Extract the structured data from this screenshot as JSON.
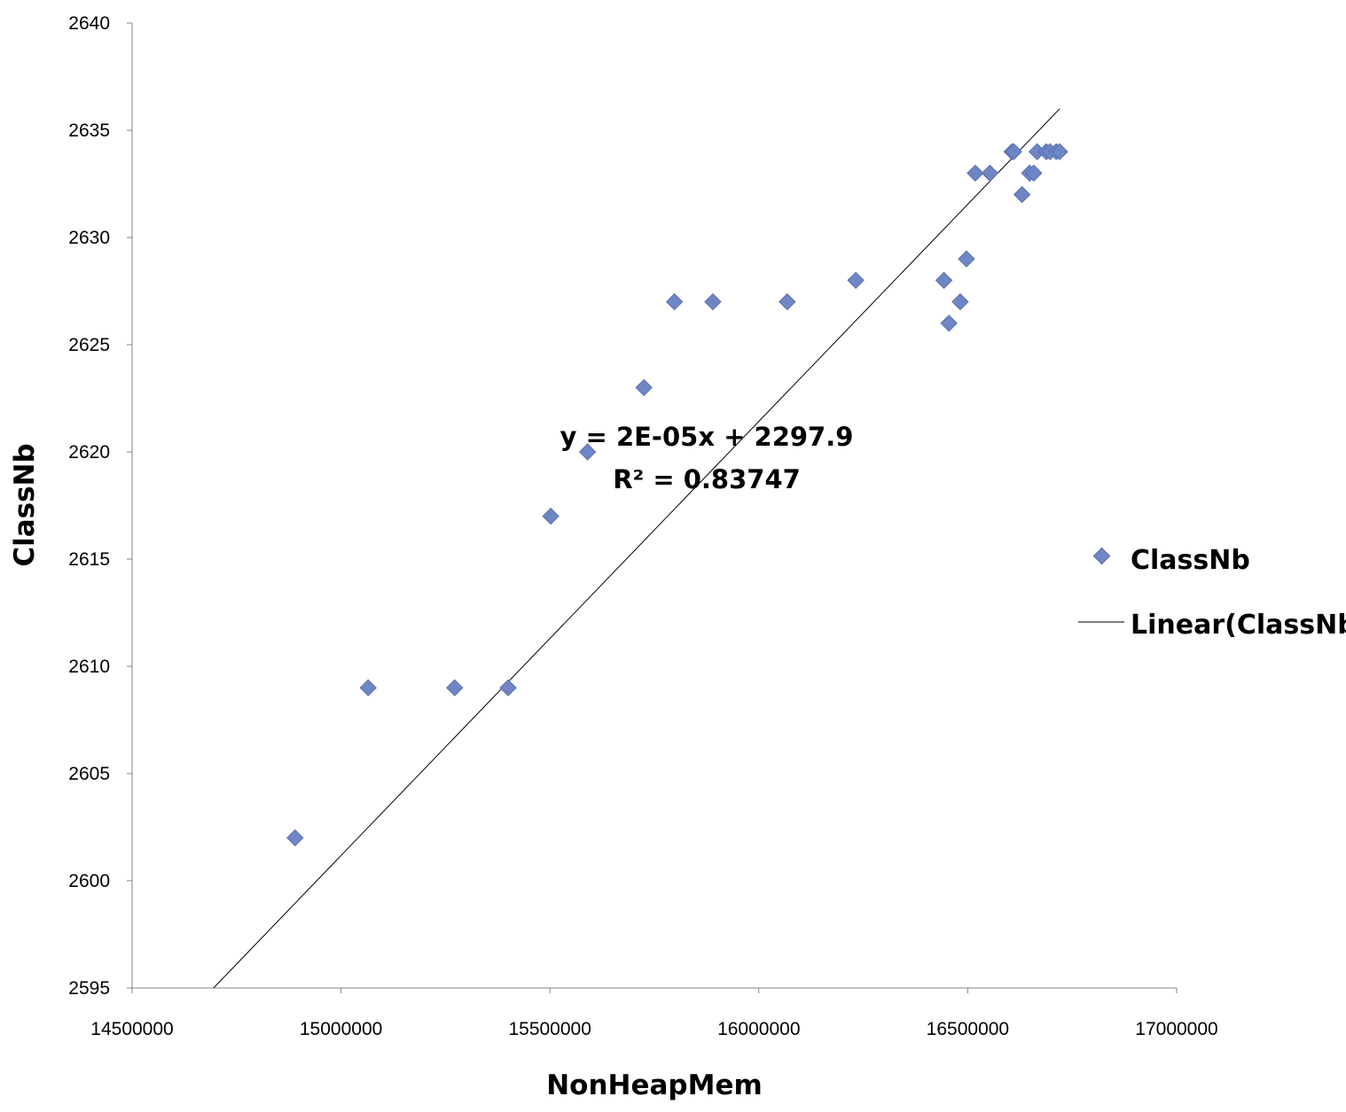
{
  "chart_data": {
    "type": "scatter",
    "title": "",
    "xlabel": "NonHeapMem",
    "ylabel": "ClassNb",
    "xlim": [
      14500000,
      17000000
    ],
    "ylim": [
      2595,
      2640
    ],
    "x_ticks": [
      14500000,
      15000000,
      15500000,
      16000000,
      16500000,
      17000000
    ],
    "y_ticks": [
      2595,
      2600,
      2605,
      2610,
      2615,
      2620,
      2625,
      2630,
      2635,
      2640
    ],
    "grid": false,
    "series": [
      {
        "name": "ClassNb",
        "marker": "diamond",
        "color": "#6f86c6",
        "points": [
          [
            14890000,
            2602
          ],
          [
            15065000,
            2609
          ],
          [
            15272000,
            2609
          ],
          [
            15400000,
            2609
          ],
          [
            15502000,
            2617
          ],
          [
            15590000,
            2620
          ],
          [
            15725000,
            2623
          ],
          [
            15798000,
            2627
          ],
          [
            15890000,
            2627
          ],
          [
            16068000,
            2627
          ],
          [
            16232000,
            2628
          ],
          [
            16443000,
            2628
          ],
          [
            16455000,
            2626
          ],
          [
            16482000,
            2627
          ],
          [
            16497000,
            2629
          ],
          [
            16518000,
            2633
          ],
          [
            16553000,
            2633
          ],
          [
            16606000,
            2634
          ],
          [
            16610000,
            2634
          ],
          [
            16630000,
            2632
          ],
          [
            16648000,
            2633
          ],
          [
            16658000,
            2633
          ],
          [
            16666000,
            2634
          ],
          [
            16688000,
            2634
          ],
          [
            16697000,
            2634
          ],
          [
            16712000,
            2634
          ],
          [
            16720000,
            2634
          ]
        ]
      }
    ],
    "trendline": {
      "name": "Linear(ClassNb)",
      "type": "linear",
      "color": "#000000",
      "x_start": 14695000,
      "x_end": 16720000,
      "y_at_start": 2595,
      "y_at_end": 2636
    },
    "equation_lines": [
      "y = 2E-05x + 2297.9",
      "R² = 0.83747"
    ],
    "legend": {
      "placement": "right",
      "entries": [
        "ClassNb",
        "Linear(ClassNb)"
      ]
    }
  }
}
